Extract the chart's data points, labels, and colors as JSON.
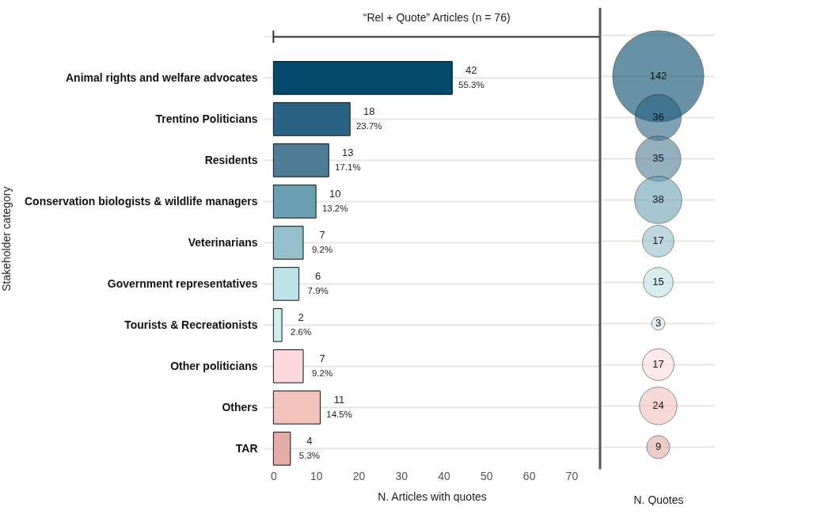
{
  "chart_data": [
    {
      "type": "bar",
      "orientation": "horizontal",
      "ylabel": "Stakeholder category",
      "xlabel": "N. Articles with quotes",
      "categories": [
        "Animal rights and welfare advocates",
        "Trentino Politicians",
        "Residents",
        "Conservation biologists & wildlife managers",
        "Veterinarians",
        "Government representatives",
        "Tourists & Recreationists",
        "Other politicians",
        "Others",
        "TAR"
      ],
      "values": [
        42,
        18,
        13,
        10,
        7,
        6,
        2,
        7,
        11,
        4
      ],
      "colors": [
        "#034a6a",
        "#2a6383",
        "#4e7d95",
        "#6ba0b3",
        "#96bfcc",
        "#bde3e8",
        "#cdefec",
        "#fdd9de",
        "#f2c3bb",
        "#e3aca5"
      ],
      "data_labels": true,
      "annotations": [
        "“Rel + Quote” Articles (n = 76)",
        {
          "text": "55.3%",
          "x": 42,
          "y": "Animal rights and welfare advocates"
        },
        {
          "text": "23.7%",
          "x": 18,
          "y": "Trentino Politicians"
        },
        {
          "text": "17.1%",
          "x": 13,
          "y": "Residents"
        },
        {
          "text": "13.2%",
          "x": 10,
          "y": "Conservation biologists & wildlife managers"
        },
        {
          "text": "9.2%",
          "x": 7,
          "y": "Veterinarians"
        },
        {
          "text": "7.9%",
          "x": 6,
          "y": "Government representatives"
        },
        {
          "text": "2.6%",
          "x": 2,
          "y": "Tourists & Recreationists"
        },
        {
          "text": "9.2%",
          "x": 7,
          "y": "Other politicians"
        },
        {
          "text": "14.5%",
          "x": 11,
          "y": "Others"
        },
        {
          "text": "5.3%",
          "x": 4,
          "y": "TAR"
        }
      ],
      "xlim": [
        -2.3,
        76.7
      ],
      "xticks": [
        0,
        10,
        20,
        30,
        40,
        50,
        60,
        70
      ],
      "ref_lines": [
        {
          "axis": "x",
          "value": 76.7,
          "color": "#555555"
        }
      ],
      "grid": "y"
    },
    {
      "type": "other",
      "xlabel": "N. Quotes",
      "values": [
        142,
        36,
        35,
        38,
        17,
        15,
        3,
        17,
        24,
        9
      ],
      "colors": [
        "#034a6a",
        "#2a6383",
        "#4e7d95",
        "#6ba0b3",
        "#96bfcc",
        "#bde3e8",
        "#cdefec",
        "#fdd9de",
        "#f2c3bb",
        "#e3aca5"
      ],
      "data_labels": true
    }
  ]
}
